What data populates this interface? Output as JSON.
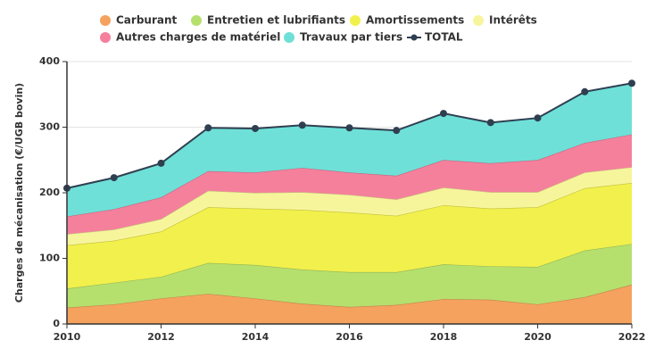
{
  "chart_data": {
    "type": "area",
    "stacked": true,
    "y_label": "Charges de mécanisation (€/UGB bovin)",
    "x": [
      2010,
      2011,
      2012,
      2013,
      2014,
      2015,
      2016,
      2017,
      2018,
      2019,
      2020,
      2021,
      2022
    ],
    "xlim": [
      2010,
      2022
    ],
    "xticks": [
      2010,
      2012,
      2014,
      2016,
      2018,
      2020,
      2022
    ],
    "ylim": [
      0,
      400
    ],
    "yticks": [
      0,
      100,
      200,
      300,
      400
    ],
    "grid": true,
    "series": [
      {
        "name": "Carburant",
        "color": "#f5a25e",
        "values": [
          25,
          30,
          39,
          46,
          39,
          31,
          26,
          29,
          38,
          37,
          30,
          41,
          60
        ]
      },
      {
        "name": "Entretien et lubrifiants",
        "color": "#b5e06e",
        "values": [
          29,
          33,
          33,
          47,
          51,
          52,
          53,
          50,
          53,
          51,
          57,
          71,
          62
        ]
      },
      {
        "name": "Amortissements",
        "color": "#f2f04c",
        "values": [
          66,
          64,
          69,
          85,
          86,
          91,
          91,
          86,
          90,
          88,
          91,
          95,
          93
        ]
      },
      {
        "name": "Intérêts",
        "color": "#f7f59c",
        "values": [
          17,
          17,
          19,
          25,
          24,
          27,
          27,
          25,
          27,
          25,
          23,
          24,
          24
        ]
      },
      {
        "name": "Autres charges de matériel",
        "color": "#f5809c",
        "values": [
          27,
          31,
          33,
          30,
          31,
          37,
          34,
          36,
          42,
          44,
          49,
          45,
          50
        ]
      },
      {
        "name": "Travaux par tiers",
        "color": "#6ee0d8",
        "values": [
          43,
          48,
          52,
          66,
          67,
          65,
          68,
          69,
          71,
          62,
          64,
          78,
          78
        ]
      },
      {
        "name": "TOTAL",
        "color": "#2f3f50",
        "type": "line",
        "values": [
          207,
          223,
          245,
          299,
          298,
          303,
          299,
          295,
          321,
          307,
          314,
          354,
          367
        ]
      }
    ]
  }
}
